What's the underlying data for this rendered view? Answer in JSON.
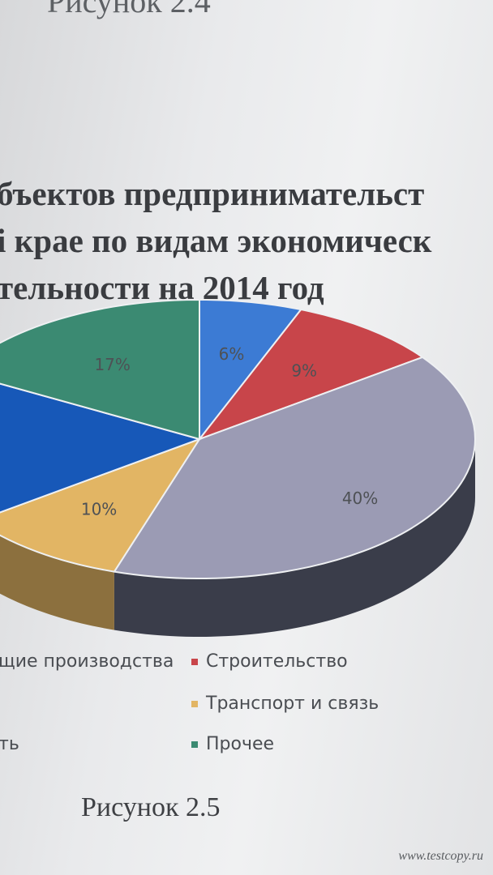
{
  "top_caption": "Рисунок 2.4",
  "title_lines": [
    "бъектов предпринимательст",
    "і крае по видам экономическ",
    "тельности на 2014 год"
  ],
  "chart_data": {
    "type": "pie",
    "title": "",
    "slices": [
      {
        "label": "",
        "value": 6,
        "display": "6%",
        "color": "#3c7bd4"
      },
      {
        "label": "Строительство",
        "value": 9,
        "display": "9%",
        "color": "#c8454a"
      },
      {
        "label": "",
        "value": 40,
        "display": "40%",
        "color": "#9b9bb4"
      },
      {
        "label": "Транспорт и связь",
        "value": 10,
        "display": "10%",
        "color": "#e2b564"
      },
      {
        "label": "",
        "value": 18,
        "display": "",
        "color": "#1758b8"
      },
      {
        "label": "Прочее",
        "value": 17,
        "display": "17%",
        "color": "#3b8a72"
      }
    ],
    "legend_placement": "bottom"
  },
  "legend": [
    {
      "text": "щие производства",
      "color": ""
    },
    {
      "text": "Строительство",
      "color": "#c8454a"
    },
    {
      "text": "Транспорт и связь",
      "color": "#e2b564"
    },
    {
      "text": "ть",
      "color": ""
    },
    {
      "text": "Прочее",
      "color": "#3b8a72"
    }
  ],
  "bottom_caption": "Рисунок 2.5",
  "watermark": "www.testcopy.ru"
}
